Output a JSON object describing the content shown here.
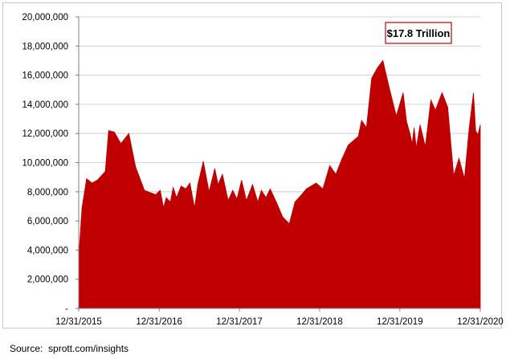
{
  "chart_data": {
    "type": "area",
    "title": "",
    "xlabel": "",
    "ylabel": "",
    "ylim": [
      0,
      20000000
    ],
    "xlim": [
      "2015-12-31",
      "2020-12-31"
    ],
    "y_ticks": [
      0,
      2000000,
      4000000,
      6000000,
      8000000,
      10000000,
      12000000,
      14000000,
      16000000,
      18000000,
      20000000
    ],
    "y_tick_labels": [
      "-",
      "2,000,000",
      "4,000,000",
      "6,000,000",
      "8,000,000",
      "10,000,000",
      "12,000,000",
      "14,000,000",
      "16,000,000",
      "18,000,000",
      "20,000,000"
    ],
    "x_ticks": [
      "2015-12-31",
      "2016-12-31",
      "2017-12-31",
      "2018-12-31",
      "2019-12-31",
      "2020-12-31"
    ],
    "x_tick_labels": [
      "12/31/2015",
      "12/31/2016",
      "12/31/2017",
      "12/31/2018",
      "12/31/2019",
      "12/31/2020"
    ],
    "grid": "horizontal",
    "legend": "none",
    "fill_color": "#c00000",
    "annotation": {
      "text": "$17.8  Trillion",
      "position": "top-right",
      "border_color": "#c00000"
    },
    "series": [
      {
        "x": [
          "2015-12-31",
          "2016-01-15",
          "2016-02-05",
          "2016-03-01",
          "2016-03-25",
          "2016-04-30",
          "2016-05-15",
          "2016-06-10",
          "2016-07-10",
          "2016-08-15",
          "2016-09-15",
          "2016-10-25",
          "2016-12-15",
          "2017-01-05",
          "2017-01-20",
          "2017-02-01",
          "2017-02-20",
          "2017-03-05",
          "2017-03-20",
          "2017-04-10",
          "2017-05-01",
          "2017-05-20",
          "2017-06-10",
          "2017-06-25",
          "2017-07-20",
          "2017-08-15",
          "2017-09-10",
          "2017-09-25",
          "2017-10-15",
          "2017-11-10",
          "2017-12-01",
          "2017-12-20",
          "2018-01-10",
          "2018-02-01",
          "2018-03-01",
          "2018-03-25",
          "2018-04-10",
          "2018-05-01",
          "2018-05-20",
          "2018-06-20",
          "2018-07-15",
          "2018-08-15",
          "2018-09-10",
          "2018-10-10",
          "2018-11-01",
          "2018-12-15",
          "2019-01-15",
          "2019-02-15",
          "2019-03-15",
          "2019-04-10",
          "2019-05-10",
          "2019-06-10",
          "2019-06-25",
          "2019-07-10",
          "2019-08-01",
          "2019-08-25",
          "2019-09-20",
          "2019-10-15",
          "2019-11-15",
          "2019-12-15",
          "2020-01-15",
          "2020-01-31",
          "2020-02-15",
          "2020-02-25",
          "2020-03-05",
          "2020-03-15",
          "2020-04-01",
          "2020-04-25",
          "2020-05-20",
          "2020-06-10",
          "2020-07-10",
          "2020-08-05",
          "2020-09-01",
          "2020-09-25",
          "2020-10-20",
          "2020-11-10",
          "2020-11-30",
          "2020-12-10",
          "2020-12-20",
          "2020-12-31"
        ],
        "values": [
          3500000,
          6900000,
          8900000,
          8600000,
          8800000,
          9400000,
          12200000,
          12100000,
          11300000,
          12000000,
          9700000,
          8100000,
          7800000,
          8100000,
          6900000,
          7600000,
          7300000,
          8300000,
          7600000,
          8400000,
          8200000,
          8600000,
          6900000,
          8500000,
          10100000,
          8000000,
          9600000,
          8500000,
          9200000,
          7400000,
          8100000,
          7500000,
          8800000,
          7400000,
          8500000,
          7300000,
          8100000,
          7600000,
          8200000,
          7200000,
          6300000,
          5800000,
          7300000,
          7800000,
          8200000,
          8600000,
          8200000,
          9800000,
          9200000,
          10200000,
          11200000,
          11600000,
          11800000,
          12900000,
          12400000,
          15800000,
          16500000,
          17000000,
          15000000,
          13200000,
          14800000,
          12800000,
          12000000,
          11300000,
          12400000,
          11000000,
          12600000,
          11100000,
          14300000,
          13600000,
          14800000,
          13800000,
          9100000,
          10300000,
          8900000,
          12300000,
          14800000,
          12200000,
          11900000,
          12600000
        ]
      }
    ]
  },
  "source": {
    "text": "Source:  sprott.com/insights"
  }
}
